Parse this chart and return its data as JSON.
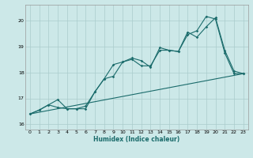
{
  "title": "",
  "xlabel": "Humidex (Indice chaleur)",
  "background_color": "#cce8e8",
  "grid_color": "#aacccc",
  "line_color": "#1a6b6b",
  "xlim": [
    -0.5,
    23.5
  ],
  "ylim": [
    15.8,
    20.6
  ],
  "yticks": [
    16,
    17,
    18,
    19,
    20
  ],
  "xticks": [
    0,
    1,
    2,
    3,
    4,
    5,
    6,
    7,
    8,
    9,
    10,
    11,
    12,
    13,
    14,
    15,
    16,
    17,
    18,
    19,
    20,
    21,
    22,
    23
  ],
  "series1_x": [
    0,
    1,
    2,
    3,
    4,
    5,
    6,
    7,
    8,
    9,
    10,
    11,
    12,
    13,
    14,
    15,
    16,
    17,
    18,
    19,
    20,
    21,
    22,
    23
  ],
  "series1_y": [
    16.4,
    16.55,
    16.75,
    16.95,
    16.6,
    16.6,
    16.7,
    17.25,
    17.75,
    17.85,
    18.4,
    18.55,
    18.45,
    18.2,
    18.95,
    18.85,
    18.8,
    19.55,
    19.35,
    19.75,
    20.1,
    18.85,
    18.05,
    17.95
  ],
  "series2_x": [
    0,
    1,
    2,
    3,
    4,
    5,
    6,
    7,
    8,
    9,
    10,
    11,
    12,
    13,
    14,
    15,
    16,
    17,
    18,
    19,
    20,
    21,
    22,
    23
  ],
  "series2_y": [
    16.4,
    16.55,
    16.75,
    16.65,
    16.6,
    16.6,
    16.6,
    17.25,
    17.75,
    18.3,
    18.4,
    18.5,
    18.25,
    18.25,
    18.85,
    18.85,
    18.8,
    19.45,
    19.6,
    20.15,
    20.05,
    18.75,
    17.95,
    17.95
  ],
  "series3_x": [
    0,
    23
  ],
  "series3_y": [
    16.4,
    17.95
  ]
}
